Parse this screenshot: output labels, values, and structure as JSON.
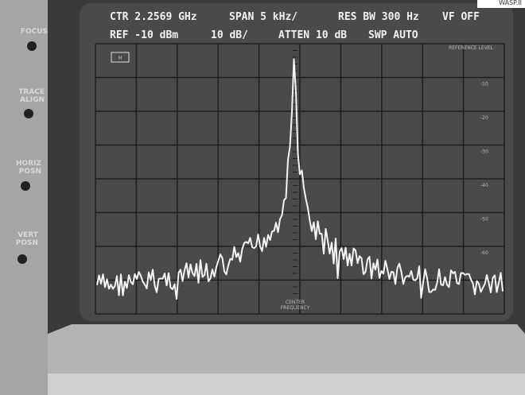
{
  "corner_label": "WASP.II",
  "knobs": [
    [
      "FOCUS"
    ],
    [
      "TRACE",
      "ALIGN"
    ],
    [
      "HORIZ",
      "POSN"
    ],
    [
      "VERT",
      "POSN"
    ]
  ],
  "screen": {
    "line1": [
      "CTR 2.2569 GHz",
      "SPAN 5 kHz/",
      "RES BW 300 Hz",
      "VF OFF"
    ],
    "line2": [
      "REF -10 dBm",
      "10 dB/",
      "ATTEN 10 dB",
      "SWP AUTO"
    ],
    "marker": "M",
    "reference_level": "REFERENCE LEVEL",
    "center_label": [
      "CENTER",
      "FREQUENCY"
    ],
    "scale_labels": [
      "-10",
      "-20",
      "-30",
      "-40",
      "-50",
      "-60"
    ]
  }
}
